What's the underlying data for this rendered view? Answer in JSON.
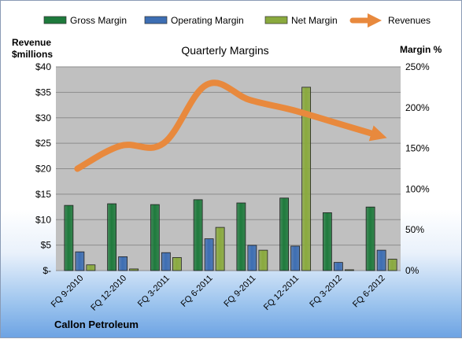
{
  "chart_data": {
    "type": "bar",
    "title": "Quarterly Margins",
    "company": "Callon Petroleum",
    "left_axis": {
      "label_line1": "Revenue",
      "label_line2": "$millions",
      "min": 0,
      "max": 40,
      "step": 5,
      "tick_labels": [
        "$-",
        "$5",
        "$10",
        "$15",
        "$20",
        "$25",
        "$30",
        "$35",
        "$40"
      ]
    },
    "right_axis": {
      "label": "Margin %",
      "min": 0,
      "max": 250,
      "step": 50,
      "tick_labels": [
        "0%",
        "50%",
        "100%",
        "150%",
        "200%",
        "250%"
      ]
    },
    "categories": [
      "FQ 9-2010",
      "FQ 12-2010",
      "FQ 3-2011",
      "FQ 6-2011",
      "FQ 9-2011",
      "FQ 12-2011",
      "FQ 3-2012",
      "FQ 6-2012"
    ],
    "series": [
      {
        "name": "Gross Margin",
        "axis": "right",
        "color": "#1e7a3c",
        "values": [
          80,
          82,
          81,
          87,
          83,
          89,
          71,
          78
        ]
      },
      {
        "name": "Operating Margin",
        "axis": "right",
        "color": "#3d6eb3",
        "values": [
          23,
          17,
          22,
          39,
          31,
          30,
          10,
          25
        ]
      },
      {
        "name": "Net Margin",
        "axis": "right",
        "color": "#8aaa3e",
        "values": [
          7,
          2,
          16,
          53,
          25,
          225,
          1,
          14
        ]
      },
      {
        "name": "Revenues",
        "axis": "left",
        "type": "line",
        "color": "#e8893d",
        "values": [
          20,
          24.5,
          25,
          36.5,
          33.5,
          31.5,
          29,
          26.5
        ]
      }
    ],
    "grid": true,
    "legend": "top"
  }
}
